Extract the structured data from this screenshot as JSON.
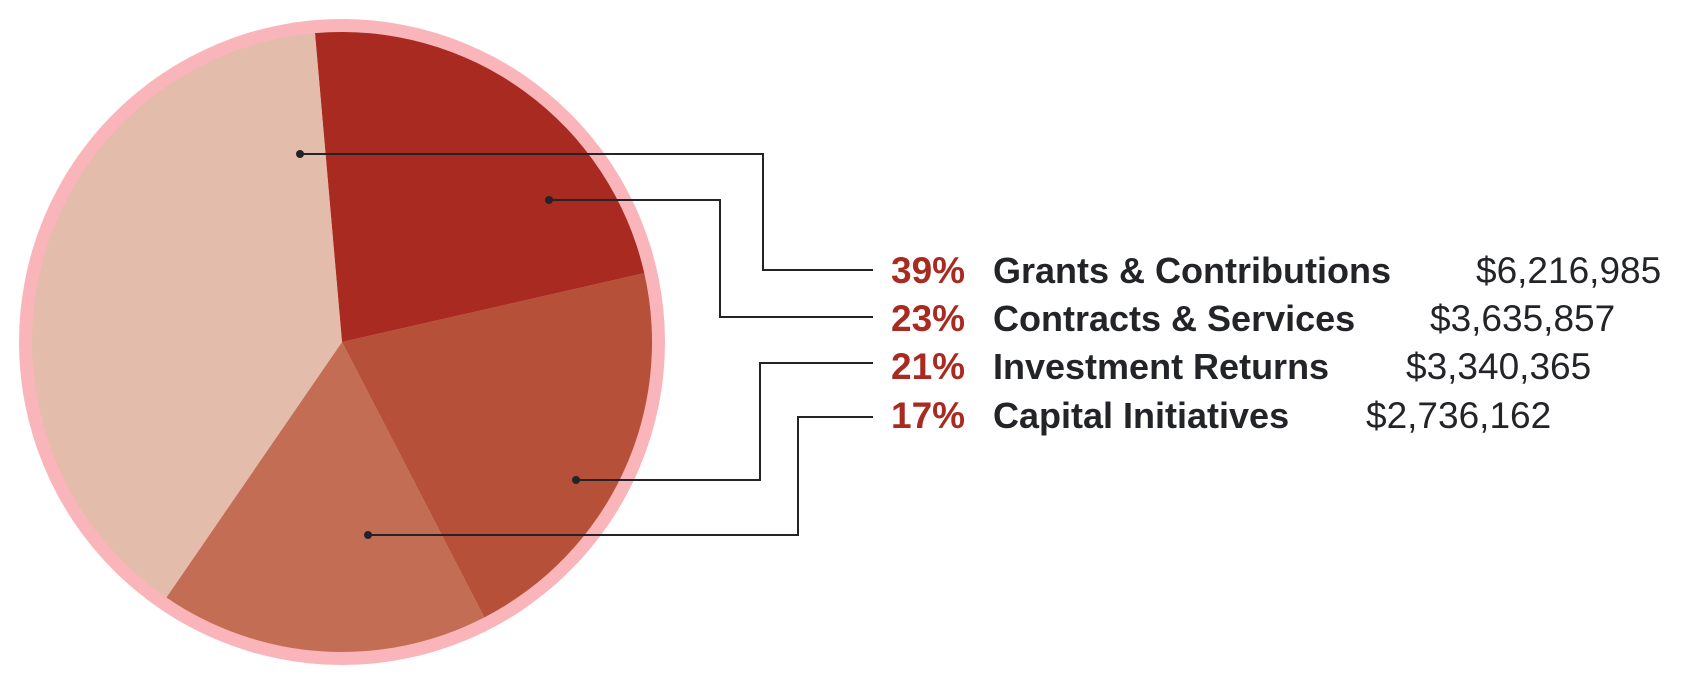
{
  "chart_data": {
    "type": "pie",
    "title": "",
    "slices": [
      {
        "percent_label": "39%",
        "label": "Grants & Contributions",
        "amount_label": "$6,216,985",
        "value": 6216985,
        "color": "#e4bcab"
      },
      {
        "percent_label": "23%",
        "label": "Contracts & Services",
        "amount_label": "$3,635,857",
        "value": 3635857,
        "color": "#a92a20"
      },
      {
        "percent_label": "21%",
        "label": "Investment Returns",
        "amount_label": "$3,340,365",
        "value": 3340365,
        "color": "#b65038"
      },
      {
        "percent_label": "17%",
        "label": "Capital Initiatives",
        "amount_label": "$2,736,162",
        "value": 2736162,
        "color": "#c36e54"
      }
    ],
    "legend_placement": "right"
  },
  "colors": {
    "ring": "#f9b5b9",
    "percent_text": "#a92a20",
    "label_text": "#222428",
    "leader_line": "#222428"
  }
}
